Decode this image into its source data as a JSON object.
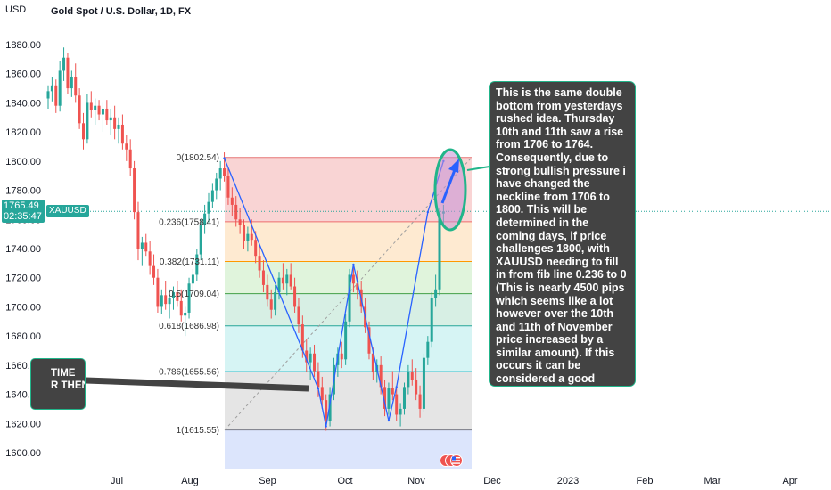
{
  "header": {
    "currency": "USD",
    "title": "Gold Spot / U.S. Dollar, 1D, FX"
  },
  "price_tag": {
    "price": "1765.49",
    "countdown": "02:35:47",
    "symbol": "XAUUSD"
  },
  "annotations": {
    "main_note": "This is the same double bottom from yesterdays rushed idea.  Thursday 10th and 11th saw a rise from 1706 to 1764. Consequently, due to strong bullish pressure i have changed the neckline from 1706 to 1800. This will be determined in the coming days, if price challenges 1800, with XAUUSD needing to fill in from fib line 0.236 to 0 (This is nearly 4500 pips which seems like a lot however over the 10th and 11th of November price increased by a similar amount). If this occurs it can be considered a good indication for lasting bullish movement to come.",
    "left_note": "TIME\nR THEN"
  },
  "colors": {
    "up": "#26a69a",
    "down": "#ef5350",
    "pattern_line": "#2962ff",
    "ellipse": "#21b58a",
    "note_bg": "#434343"
  },
  "chart_data": {
    "type": "candlestick",
    "title": "Gold Spot / U.S. Dollar, 1D, FX",
    "y_axis_label": "USD",
    "ylim": [
      1588,
      1898
    ],
    "y_ticks": [
      "1600.00",
      "1620.00",
      "1640.00",
      "1660.00",
      "1680.00",
      "1700.00",
      "1720.00",
      "1740.00",
      "1760.00",
      "1780.00",
      "1800.00",
      "1820.00",
      "1840.00",
      "1860.00",
      "1880.00"
    ],
    "x_ticks": [
      "Jul",
      "Aug",
      "Sep",
      "Oct",
      "Nov",
      "Dec",
      "2023",
      "Feb",
      "Mar",
      "Apr"
    ],
    "grid": false,
    "current_price": 1765.49,
    "candles": [
      {
        "o": 1843,
        "h": 1852,
        "l": 1836,
        "c": 1848
      },
      {
        "o": 1848,
        "h": 1858,
        "l": 1841,
        "c": 1852
      },
      {
        "o": 1852,
        "h": 1856,
        "l": 1833,
        "c": 1838
      },
      {
        "o": 1838,
        "h": 1869,
        "l": 1834,
        "c": 1862
      },
      {
        "o": 1862,
        "h": 1878,
        "l": 1855,
        "c": 1871
      },
      {
        "o": 1871,
        "h": 1874,
        "l": 1846,
        "c": 1850
      },
      {
        "o": 1850,
        "h": 1862,
        "l": 1844,
        "c": 1858
      },
      {
        "o": 1858,
        "h": 1867,
        "l": 1840,
        "c": 1845
      },
      {
        "o": 1845,
        "h": 1850,
        "l": 1822,
        "c": 1826
      },
      {
        "o": 1826,
        "h": 1833,
        "l": 1808,
        "c": 1815
      },
      {
        "o": 1815,
        "h": 1846,
        "l": 1812,
        "c": 1840
      },
      {
        "o": 1840,
        "h": 1848,
        "l": 1830,
        "c": 1835
      },
      {
        "o": 1835,
        "h": 1843,
        "l": 1825,
        "c": 1838
      },
      {
        "o": 1838,
        "h": 1842,
        "l": 1828,
        "c": 1832
      },
      {
        "o": 1832,
        "h": 1840,
        "l": 1820,
        "c": 1836
      },
      {
        "o": 1836,
        "h": 1842,
        "l": 1825,
        "c": 1828
      },
      {
        "o": 1828,
        "h": 1836,
        "l": 1818,
        "c": 1830
      },
      {
        "o": 1830,
        "h": 1838,
        "l": 1815,
        "c": 1822
      },
      {
        "o": 1822,
        "h": 1830,
        "l": 1812,
        "c": 1825
      },
      {
        "o": 1825,
        "h": 1832,
        "l": 1808,
        "c": 1812
      },
      {
        "o": 1812,
        "h": 1818,
        "l": 1800,
        "c": 1808
      },
      {
        "o": 1808,
        "h": 1815,
        "l": 1790,
        "c": 1795
      },
      {
        "o": 1795,
        "h": 1800,
        "l": 1760,
        "c": 1765
      },
      {
        "o": 1765,
        "h": 1772,
        "l": 1732,
        "c": 1740
      },
      {
        "o": 1740,
        "h": 1748,
        "l": 1728,
        "c": 1744
      },
      {
        "o": 1744,
        "h": 1750,
        "l": 1735,
        "c": 1738
      },
      {
        "o": 1738,
        "h": 1745,
        "l": 1722,
        "c": 1728
      },
      {
        "o": 1728,
        "h": 1736,
        "l": 1715,
        "c": 1720
      },
      {
        "o": 1720,
        "h": 1726,
        "l": 1696,
        "c": 1700
      },
      {
        "o": 1700,
        "h": 1712,
        "l": 1695,
        "c": 1708
      },
      {
        "o": 1708,
        "h": 1718,
        "l": 1698,
        "c": 1702
      },
      {
        "o": 1702,
        "h": 1712,
        "l": 1692,
        "c": 1706
      },
      {
        "o": 1706,
        "h": 1714,
        "l": 1698,
        "c": 1710
      },
      {
        "o": 1710,
        "h": 1718,
        "l": 1700,
        "c": 1704
      },
      {
        "o": 1704,
        "h": 1712,
        "l": 1690,
        "c": 1694
      },
      {
        "o": 1694,
        "h": 1700,
        "l": 1680,
        "c": 1696
      },
      {
        "o": 1696,
        "h": 1720,
        "l": 1692,
        "c": 1716
      },
      {
        "o": 1716,
        "h": 1726,
        "l": 1710,
        "c": 1722
      },
      {
        "o": 1722,
        "h": 1740,
        "l": 1718,
        "c": 1736
      },
      {
        "o": 1736,
        "h": 1760,
        "l": 1732,
        "c": 1756
      },
      {
        "o": 1756,
        "h": 1770,
        "l": 1750,
        "c": 1764
      },
      {
        "o": 1764,
        "h": 1778,
        "l": 1758,
        "c": 1772
      },
      {
        "o": 1772,
        "h": 1785,
        "l": 1768,
        "c": 1780
      },
      {
        "o": 1780,
        "h": 1792,
        "l": 1774,
        "c": 1788
      },
      {
        "o": 1788,
        "h": 1800,
        "l": 1780,
        "c": 1795
      },
      {
        "o": 1795,
        "h": 1806,
        "l": 1786,
        "c": 1790
      },
      {
        "o": 1790,
        "h": 1795,
        "l": 1770,
        "c": 1775
      },
      {
        "o": 1775,
        "h": 1782,
        "l": 1762,
        "c": 1770
      },
      {
        "o": 1770,
        "h": 1776,
        "l": 1755,
        "c": 1760
      },
      {
        "o": 1760,
        "h": 1768,
        "l": 1750,
        "c": 1756
      },
      {
        "o": 1756,
        "h": 1760,
        "l": 1740,
        "c": 1745
      },
      {
        "o": 1745,
        "h": 1755,
        "l": 1738,
        "c": 1750
      },
      {
        "o": 1750,
        "h": 1760,
        "l": 1742,
        "c": 1746
      },
      {
        "o": 1746,
        "h": 1752,
        "l": 1730,
        "c": 1735
      },
      {
        "o": 1735,
        "h": 1742,
        "l": 1720,
        "c": 1725
      },
      {
        "o": 1725,
        "h": 1732,
        "l": 1710,
        "c": 1715
      },
      {
        "o": 1715,
        "h": 1722,
        "l": 1700,
        "c": 1705
      },
      {
        "o": 1705,
        "h": 1712,
        "l": 1692,
        "c": 1698
      },
      {
        "o": 1698,
        "h": 1715,
        "l": 1694,
        "c": 1710
      },
      {
        "o": 1710,
        "h": 1724,
        "l": 1705,
        "c": 1720
      },
      {
        "o": 1720,
        "h": 1730,
        "l": 1712,
        "c": 1716
      },
      {
        "o": 1716,
        "h": 1726,
        "l": 1708,
        "c": 1722
      },
      {
        "o": 1722,
        "h": 1730,
        "l": 1712,
        "c": 1714
      },
      {
        "o": 1714,
        "h": 1720,
        "l": 1696,
        "c": 1700
      },
      {
        "o": 1700,
        "h": 1706,
        "l": 1682,
        "c": 1688
      },
      {
        "o": 1688,
        "h": 1694,
        "l": 1665,
        "c": 1670
      },
      {
        "o": 1670,
        "h": 1678,
        "l": 1655,
        "c": 1662
      },
      {
        "o": 1662,
        "h": 1672,
        "l": 1650,
        "c": 1668
      },
      {
        "o": 1668,
        "h": 1674,
        "l": 1652,
        "c": 1656
      },
      {
        "o": 1656,
        "h": 1662,
        "l": 1638,
        "c": 1645
      },
      {
        "o": 1645,
        "h": 1652,
        "l": 1630,
        "c": 1636
      },
      {
        "o": 1636,
        "h": 1640,
        "l": 1615,
        "c": 1622
      },
      {
        "o": 1622,
        "h": 1645,
        "l": 1618,
        "c": 1640
      },
      {
        "o": 1640,
        "h": 1665,
        "l": 1636,
        "c": 1660
      },
      {
        "o": 1660,
        "h": 1672,
        "l": 1652,
        "c": 1668
      },
      {
        "o": 1668,
        "h": 1676,
        "l": 1658,
        "c": 1664
      },
      {
        "o": 1664,
        "h": 1695,
        "l": 1660,
        "c": 1690
      },
      {
        "o": 1690,
        "h": 1726,
        "l": 1686,
        "c": 1722
      },
      {
        "o": 1722,
        "h": 1729,
        "l": 1710,
        "c": 1716
      },
      {
        "o": 1716,
        "h": 1725,
        "l": 1705,
        "c": 1712
      },
      {
        "o": 1712,
        "h": 1718,
        "l": 1696,
        "c": 1700
      },
      {
        "o": 1700,
        "h": 1706,
        "l": 1682,
        "c": 1686
      },
      {
        "o": 1686,
        "h": 1690,
        "l": 1664,
        "c": 1668
      },
      {
        "o": 1668,
        "h": 1672,
        "l": 1650,
        "c": 1655
      },
      {
        "o": 1655,
        "h": 1664,
        "l": 1648,
        "c": 1660
      },
      {
        "o": 1660,
        "h": 1666,
        "l": 1640,
        "c": 1645
      },
      {
        "o": 1645,
        "h": 1650,
        "l": 1625,
        "c": 1630
      },
      {
        "o": 1630,
        "h": 1648,
        "l": 1626,
        "c": 1644
      },
      {
        "o": 1644,
        "h": 1656,
        "l": 1636,
        "c": 1640
      },
      {
        "o": 1640,
        "h": 1646,
        "l": 1622,
        "c": 1626
      },
      {
        "o": 1626,
        "h": 1634,
        "l": 1618,
        "c": 1630
      },
      {
        "o": 1630,
        "h": 1648,
        "l": 1626,
        "c": 1645
      },
      {
        "o": 1645,
        "h": 1660,
        "l": 1640,
        "c": 1655
      },
      {
        "o": 1655,
        "h": 1664,
        "l": 1646,
        "c": 1650
      },
      {
        "o": 1650,
        "h": 1658,
        "l": 1636,
        "c": 1640
      },
      {
        "o": 1640,
        "h": 1646,
        "l": 1624,
        "c": 1630
      },
      {
        "o": 1630,
        "h": 1668,
        "l": 1628,
        "c": 1665
      },
      {
        "o": 1665,
        "h": 1680,
        "l": 1660,
        "c": 1676
      },
      {
        "o": 1676,
        "h": 1710,
        "l": 1672,
        "c": 1706
      },
      {
        "o": 1706,
        "h": 1722,
        "l": 1700,
        "c": 1712
      },
      {
        "o": 1712,
        "h": 1768,
        "l": 1708,
        "c": 1764
      },
      {
        "o": 1764,
        "h": 1770,
        "l": 1755,
        "c": 1765.49
      }
    ],
    "fibonacci": [
      {
        "label": "0(1802.54)",
        "value": 1802.54,
        "color": "#f7c5c5"
      },
      {
        "label": "0.236(1758.41)",
        "value": 1758.41,
        "color": "#fde3c2"
      },
      {
        "label": "0.382(1731.11)",
        "value": 1731.11,
        "color": "#d6f0d0"
      },
      {
        "label": "0.5(1709.04)",
        "value": 1709.04,
        "color": "#c9eadb"
      },
      {
        "label": "0.618(1686.98)",
        "value": 1686.98,
        "color": "#c8f0f0"
      },
      {
        "label": "0.786(1655.56)",
        "value": 1655.56,
        "color": "#dcdcdc"
      },
      {
        "label": "1(1615.55)",
        "value": 1615.55,
        "color": "#d0dcfb"
      }
    ],
    "pattern_points": [
      {
        "i": 45,
        "v": 1802
      },
      {
        "i": 69,
        "v": 1644
      },
      {
        "i": 71,
        "v": 1618
      },
      {
        "i": 78,
        "v": 1729
      },
      {
        "i": 87,
        "v": 1622
      },
      {
        "i": 89,
        "v": 1645
      },
      {
        "i": 97,
        "v": 1765
      },
      {
        "i": 101,
        "v": 1800
      }
    ]
  }
}
